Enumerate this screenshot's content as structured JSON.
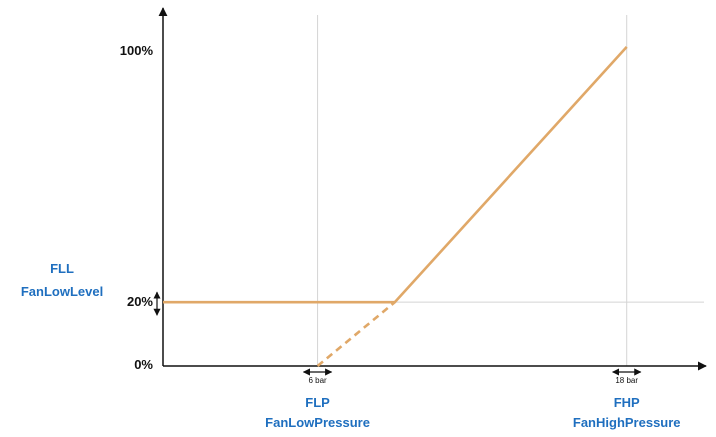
{
  "chart_data": {
    "type": "line",
    "y_tick_labels": [
      "0%",
      "20%",
      "100%"
    ],
    "x_markers": [
      {
        "value": 6,
        "label": "6 bar",
        "abbr": "FLP",
        "name_parts": [
          "Fan",
          "Low",
          "Pressure"
        ]
      },
      {
        "value": 18,
        "label": "18 bar",
        "abbr": "FHP",
        "name_parts": [
          "Fan",
          "High",
          "Pressure"
        ]
      }
    ],
    "level": {
      "value": 20,
      "abbr": "FLL",
      "name_parts": [
        "Fan",
        "Low",
        "Level"
      ]
    },
    "series": [
      {
        "style": "solid",
        "points": [
          [
            0,
            20
          ],
          [
            9,
            20
          ],
          [
            18,
            100
          ]
        ]
      },
      {
        "style": "dashed",
        "points": [
          [
            6,
            0
          ],
          [
            9,
            20
          ]
        ]
      }
    ],
    "xlim": [
      0,
      21
    ],
    "ylim": [
      0,
      110
    ],
    "colors": {
      "line": "#e0a868",
      "axis": "#111111",
      "grid": "#d4d4d4",
      "label_blue": "#1f6fbf"
    }
  }
}
